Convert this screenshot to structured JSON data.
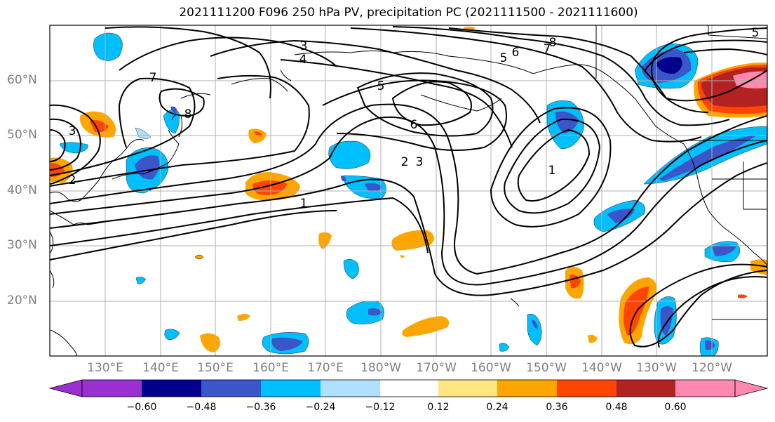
{
  "title": "2021111200 F096 250 hPa PV, precipitation PC (2021111500 - 2021111600)",
  "lat_labels": [
    "60°N",
    "50°N",
    "40°N",
    "30°N",
    "20°N"
  ],
  "lon_labels": [
    "130°E",
    "140°E",
    "150°E",
    "160°E",
    "170°E",
    "180°W",
    "170°W",
    "160°W",
    "150°W",
    "140°W",
    "130°W",
    "120°W"
  ],
  "contour_labels": [
    "3",
    "4",
    "5",
    "6",
    "7",
    "8",
    "7",
    "8",
    "3",
    "2",
    "5",
    "6",
    "2",
    "3",
    "1",
    "1",
    "5"
  ],
  "colorbar": {
    "tick_labels": [
      "−0.60",
      "−0.48",
      "−0.36",
      "−0.24",
      "−0.12",
      "0.12",
      "0.24",
      "0.36",
      "0.48",
      "0.60"
    ],
    "colors": [
      "#9b30d0",
      "#00008b",
      "#3a56c8",
      "#00bfff",
      "#b0e0ff",
      "#ffffff",
      "#ffe680",
      "#ffa500",
      "#ff4500",
      "#b22222",
      "#ff88b0"
    ]
  },
  "colors": {
    "purple": "#9b30d0",
    "navy": "#00008b",
    "royal": "#3a56c8",
    "sky": "#00bfff",
    "pale_blue": "#b0e0ff",
    "pale_yellow": "#ffe680",
    "orange": "#ffa500",
    "red_orange": "#ff4500",
    "firebrick": "#b22222",
    "pink": "#ff88b0"
  }
}
